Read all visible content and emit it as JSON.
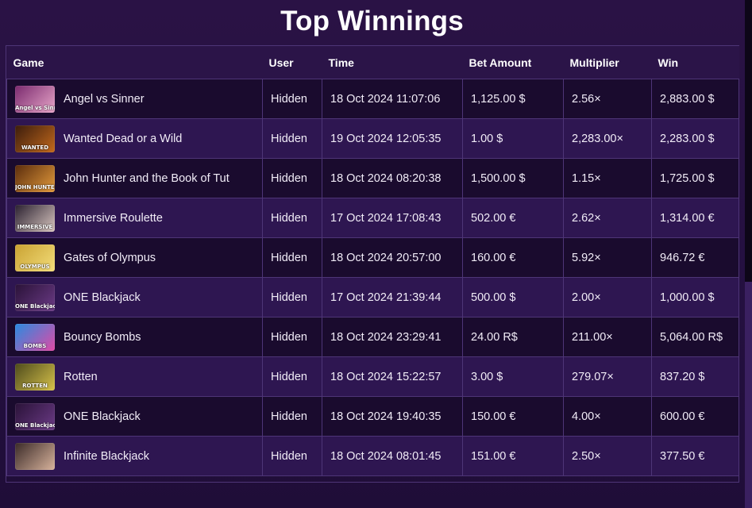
{
  "title": "Top Winnings",
  "columns": [
    "Game",
    "User",
    "Time",
    "Bet Amount",
    "Multiplier",
    "Win"
  ],
  "rows": [
    {
      "game": "Angel vs Sinner",
      "user": "Hidden",
      "time": "18 Oct 2024 11:07:06",
      "bet": "1,125.00 $",
      "multiplier": "2.56×",
      "win": "2,883.00 $",
      "thumb": {
        "colors": [
          "#7a2a6e",
          "#e8a6c9"
        ],
        "label": "Angel vs Sinner",
        "icon": "angel-vs-sinner-thumbnail"
      }
    },
    {
      "game": "Wanted Dead or a Wild",
      "user": "Hidden",
      "time": "19 Oct 2024 12:05:35",
      "bet": "1.00 $",
      "multiplier": "2,283.00×",
      "win": "2,283.00 $",
      "thumb": {
        "colors": [
          "#3b1c0c",
          "#c2691c"
        ],
        "label": "WANTED",
        "icon": "wanted-dead-or-a-wild-thumbnail"
      }
    },
    {
      "game": "John Hunter and the Book of Tut",
      "user": "Hidden",
      "time": "18 Oct 2024 08:20:38",
      "bet": "1,500.00 $",
      "multiplier": "1.15×",
      "win": "1,725.00 $",
      "thumb": {
        "colors": [
          "#5a2c0c",
          "#e49b3c"
        ],
        "label": "JOHN HUNTER",
        "icon": "john-hunter-thumbnail"
      }
    },
    {
      "game": "Immersive Roulette",
      "user": "Hidden",
      "time": "17 Oct 2024 17:08:43",
      "bet": "502.00 €",
      "multiplier": "2.62×",
      "win": "1,314.00 €",
      "thumb": {
        "colors": [
          "#2a2030",
          "#d9c7c0"
        ],
        "label": "IMMERSIVE",
        "icon": "immersive-roulette-thumbnail"
      }
    },
    {
      "game": "Gates of Olympus",
      "user": "Hidden",
      "time": "18 Oct 2024 20:57:00",
      "bet": "160.00 €",
      "multiplier": "5.92×",
      "win": "946.72 €",
      "thumb": {
        "colors": [
          "#c9a232",
          "#f3dd7a"
        ],
        "label": "OLYMPUS",
        "icon": "gates-of-olympus-thumbnail"
      }
    },
    {
      "game": "ONE Blackjack",
      "user": "Hidden",
      "time": "17 Oct 2024 21:39:44",
      "bet": "500.00 $",
      "multiplier": "2.00×",
      "win": "1,000.00 $",
      "thumb": {
        "colors": [
          "#2a1238",
          "#6b3b86"
        ],
        "label": "ONE Blackjack",
        "icon": "one-blackjack-thumbnail"
      }
    },
    {
      "game": "Bouncy Bombs",
      "user": "Hidden",
      "time": "18 Oct 2024 23:29:41",
      "bet": "24.00 R$",
      "multiplier": "211.00×",
      "win": "5,064.00 R$",
      "thumb": {
        "colors": [
          "#2a8be0",
          "#e04aa6"
        ],
        "label": "BOMBS",
        "icon": "bouncy-bombs-thumbnail"
      }
    },
    {
      "game": "Rotten",
      "user": "Hidden",
      "time": "18 Oct 2024 15:22:57",
      "bet": "3.00 $",
      "multiplier": "279.07×",
      "win": "837.20 $",
      "thumb": {
        "colors": [
          "#4d4a1c",
          "#d7c24a"
        ],
        "label": "ROTTEN",
        "icon": "rotten-thumbnail"
      }
    },
    {
      "game": "ONE Blackjack",
      "user": "Hidden",
      "time": "18 Oct 2024 19:40:35",
      "bet": "150.00 €",
      "multiplier": "4.00×",
      "win": "600.00 €",
      "thumb": {
        "colors": [
          "#2a1238",
          "#6b3b86"
        ],
        "label": "ONE Blackjack",
        "icon": "one-blackjack-thumbnail"
      }
    },
    {
      "game": "Infinite Blackjack",
      "user": "Hidden",
      "time": "18 Oct 2024 08:01:45",
      "bet": "151.00 €",
      "multiplier": "2.50×",
      "win": "377.50 €",
      "thumb": {
        "colors": [
          "#3a2a28",
          "#d8b39c"
        ],
        "label": "",
        "icon": "infinite-blackjack-thumbnail"
      }
    }
  ],
  "colors": {
    "background": "#2a1245",
    "row_dark": "#1a0b2e",
    "row_light": "#2e1651",
    "border": "#4e3577"
  }
}
